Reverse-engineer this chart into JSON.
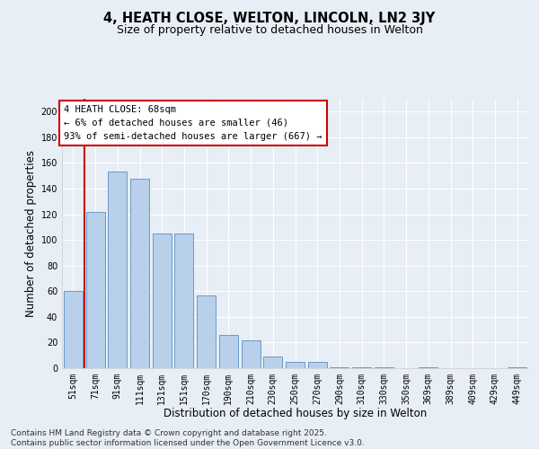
{
  "title": "4, HEATH CLOSE, WELTON, LINCOLN, LN2 3JY",
  "subtitle": "Size of property relative to detached houses in Welton",
  "xlabel": "Distribution of detached houses by size in Welton",
  "ylabel": "Number of detached properties",
  "categories": [
    "51sqm",
    "71sqm",
    "91sqm",
    "111sqm",
    "131sqm",
    "151sqm",
    "170sqm",
    "190sqm",
    "210sqm",
    "230sqm",
    "250sqm",
    "270sqm",
    "290sqm",
    "310sqm",
    "330sqm",
    "350sqm",
    "369sqm",
    "389sqm",
    "409sqm",
    "429sqm",
    "449sqm"
  ],
  "values": [
    60,
    122,
    153,
    148,
    105,
    105,
    57,
    26,
    22,
    9,
    5,
    5,
    1,
    1,
    1,
    0,
    1,
    0,
    0,
    0,
    1
  ],
  "bar_color": "#b8d0ea",
  "bar_edge_color": "#5a8fc2",
  "vline_color": "#cc0000",
  "vline_x": 0.5,
  "annotation_text": "4 HEATH CLOSE: 68sqm\n← 6% of detached houses are smaller (46)\n93% of semi-detached houses are larger (667) →",
  "footer_text": "Contains HM Land Registry data © Crown copyright and database right 2025.\nContains public sector information licensed under the Open Government Licence v3.0.",
  "background_color": "#e8eef5",
  "ylim": [
    0,
    210
  ],
  "yticks": [
    0,
    20,
    40,
    60,
    80,
    100,
    120,
    140,
    160,
    180,
    200
  ],
  "title_fontsize": 10.5,
  "subtitle_fontsize": 9,
  "axis_label_fontsize": 8.5,
  "tick_fontsize": 7,
  "annotation_fontsize": 7.5,
  "footer_fontsize": 6.5
}
